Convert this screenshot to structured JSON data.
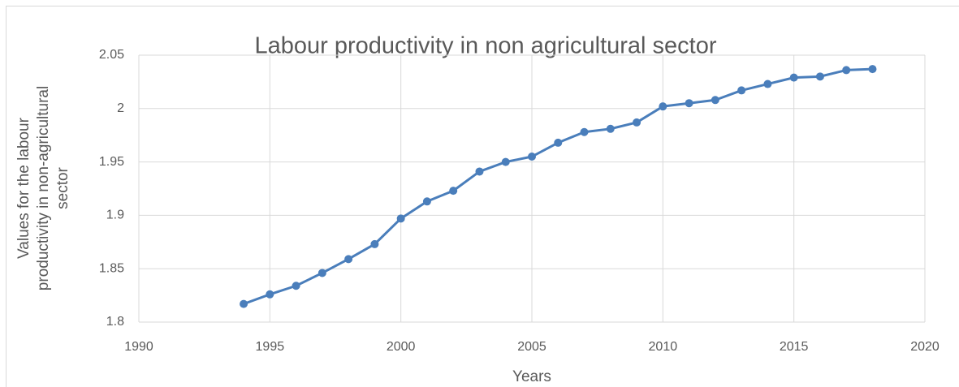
{
  "chart_data": {
    "type": "line",
    "title": "Labour productivity in non agricultural sector",
    "xlabel": "Years",
    "ylabel": [
      "Values for the labour",
      "productivity in non-agricultural",
      "sector"
    ],
    "x": [
      1994,
      1995,
      1996,
      1997,
      1998,
      1999,
      2000,
      2001,
      2002,
      2003,
      2004,
      2005,
      2006,
      2007,
      2008,
      2009,
      2010,
      2011,
      2012,
      2013,
      2014,
      2015,
      2016,
      2017,
      2018
    ],
    "series": [
      {
        "color": "#4a7ebb",
        "values": [
          1.817,
          1.826,
          1.834,
          1.846,
          1.859,
          1.873,
          1.897,
          1.913,
          1.923,
          1.941,
          1.95,
          1.955,
          1.968,
          1.978,
          1.981,
          1.987,
          2.002,
          2.005,
          2.008,
          2.017,
          2.023,
          2.029,
          2.03,
          2.036,
          2.037
        ]
      }
    ],
    "xlim": [
      1990,
      2020
    ],
    "xticks": [
      1990,
      1995,
      2000,
      2005,
      2010,
      2015,
      2020
    ],
    "ylim": [
      1.8,
      2.05
    ],
    "yticks": [
      1.8,
      1.85,
      1.9,
      1.95,
      2,
      2.05
    ],
    "grid": true
  }
}
